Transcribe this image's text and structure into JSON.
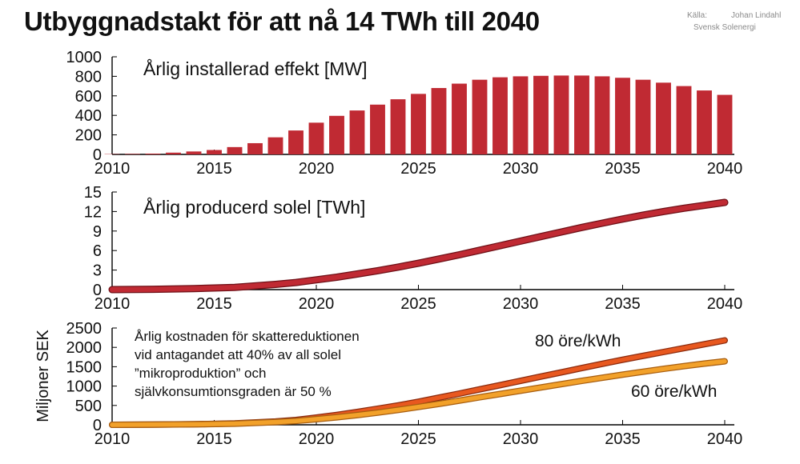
{
  "title": "Utbyggnadstakt för att nå 14 TWh till 2040",
  "source": {
    "label": "Källa:",
    "line1": "Johan Lindahl",
    "line2": "Svensk Solenergi"
  },
  "colors": {
    "bar": "#c02a33",
    "line_produced": "#c02a33",
    "line_80": "#e8581f",
    "line_60": "#f2a12a"
  },
  "chart_data": [
    {
      "type": "bar",
      "title": "Årlig installerad effekt [MW]",
      "xlabel": "",
      "ylabel": "",
      "categories": [
        2010,
        2011,
        2012,
        2013,
        2014,
        2015,
        2016,
        2017,
        2018,
        2019,
        2020,
        2021,
        2022,
        2023,
        2024,
        2025,
        2026,
        2027,
        2028,
        2029,
        2030,
        2031,
        2032,
        2033,
        2034,
        2035,
        2036,
        2037,
        2038,
        2039,
        2040
      ],
      "values": [
        3,
        5,
        8,
        18,
        30,
        45,
        75,
        115,
        175,
        245,
        325,
        395,
        450,
        510,
        565,
        620,
        680,
        725,
        765,
        790,
        800,
        805,
        808,
        808,
        800,
        785,
        765,
        735,
        700,
        655,
        610
      ],
      "ylim": [
        0,
        1000
      ],
      "yticks": [
        0,
        200,
        400,
        600,
        800,
        1000
      ],
      "xticks": [
        2010,
        2015,
        2020,
        2025,
        2030,
        2035,
        2040
      ]
    },
    {
      "type": "line",
      "title": "Årlig producerd solel [TWh]",
      "xlabel": "",
      "ylabel": "",
      "x": [
        2010,
        2012,
        2014,
        2016,
        2018,
        2019,
        2020,
        2021,
        2022,
        2023,
        2024,
        2025,
        2026,
        2027,
        2028,
        2029,
        2030,
        2031,
        2032,
        2033,
        2034,
        2035,
        2036,
        2037,
        2038,
        2039,
        2040
      ],
      "series": [
        {
          "values": [
            0,
            0.05,
            0.15,
            0.35,
            0.8,
            1.1,
            1.5,
            1.9,
            2.4,
            2.9,
            3.45,
            4.05,
            4.7,
            5.35,
            6.05,
            6.75,
            7.45,
            8.15,
            8.85,
            9.55,
            10.2,
            10.85,
            11.45,
            12.0,
            12.5,
            12.95,
            13.4
          ]
        }
      ],
      "ylim": [
        0,
        15
      ],
      "yticks": [
        0,
        3,
        6,
        9,
        12,
        15
      ],
      "xticks": [
        2010,
        2015,
        2020,
        2025,
        2030,
        2035,
        2040
      ]
    },
    {
      "type": "line",
      "title": "",
      "xlabel": "",
      "ylabel": "Miljoner SEK",
      "annotation": [
        "Årlig kostnaden för skattereduktionen",
        "vid antagandet att 40% av all solel",
        "”mikroproduktion” och",
        "självkonsumtionsgraden är 50 %"
      ],
      "x": [
        2010,
        2012,
        2014,
        2016,
        2018,
        2019,
        2020,
        2021,
        2022,
        2023,
        2024,
        2025,
        2026,
        2027,
        2028,
        2029,
        2030,
        2031,
        2032,
        2033,
        2034,
        2035,
        2036,
        2037,
        2038,
        2039,
        2040
      ],
      "series": [
        {
          "name": "80 öre/kWh",
          "values": [
            0,
            5,
            15,
            35,
            85,
            125,
            185,
            255,
            330,
            415,
            500,
            595,
            700,
            805,
            915,
            1025,
            1135,
            1245,
            1355,
            1465,
            1575,
            1680,
            1780,
            1880,
            1980,
            2080,
            2180
          ]
        },
        {
          "name": "60 öre/kWh",
          "values": [
            0,
            4,
            12,
            28,
            70,
            100,
            145,
            195,
            250,
            315,
            385,
            460,
            540,
            625,
            710,
            795,
            880,
            965,
            1050,
            1135,
            1215,
            1295,
            1370,
            1445,
            1515,
            1580,
            1640
          ]
        }
      ],
      "ylim": [
        0,
        2500
      ],
      "yticks": [
        0,
        500,
        1000,
        1500,
        2000,
        2500
      ],
      "xticks": [
        2010,
        2015,
        2020,
        2025,
        2030,
        2035,
        2040
      ]
    }
  ]
}
